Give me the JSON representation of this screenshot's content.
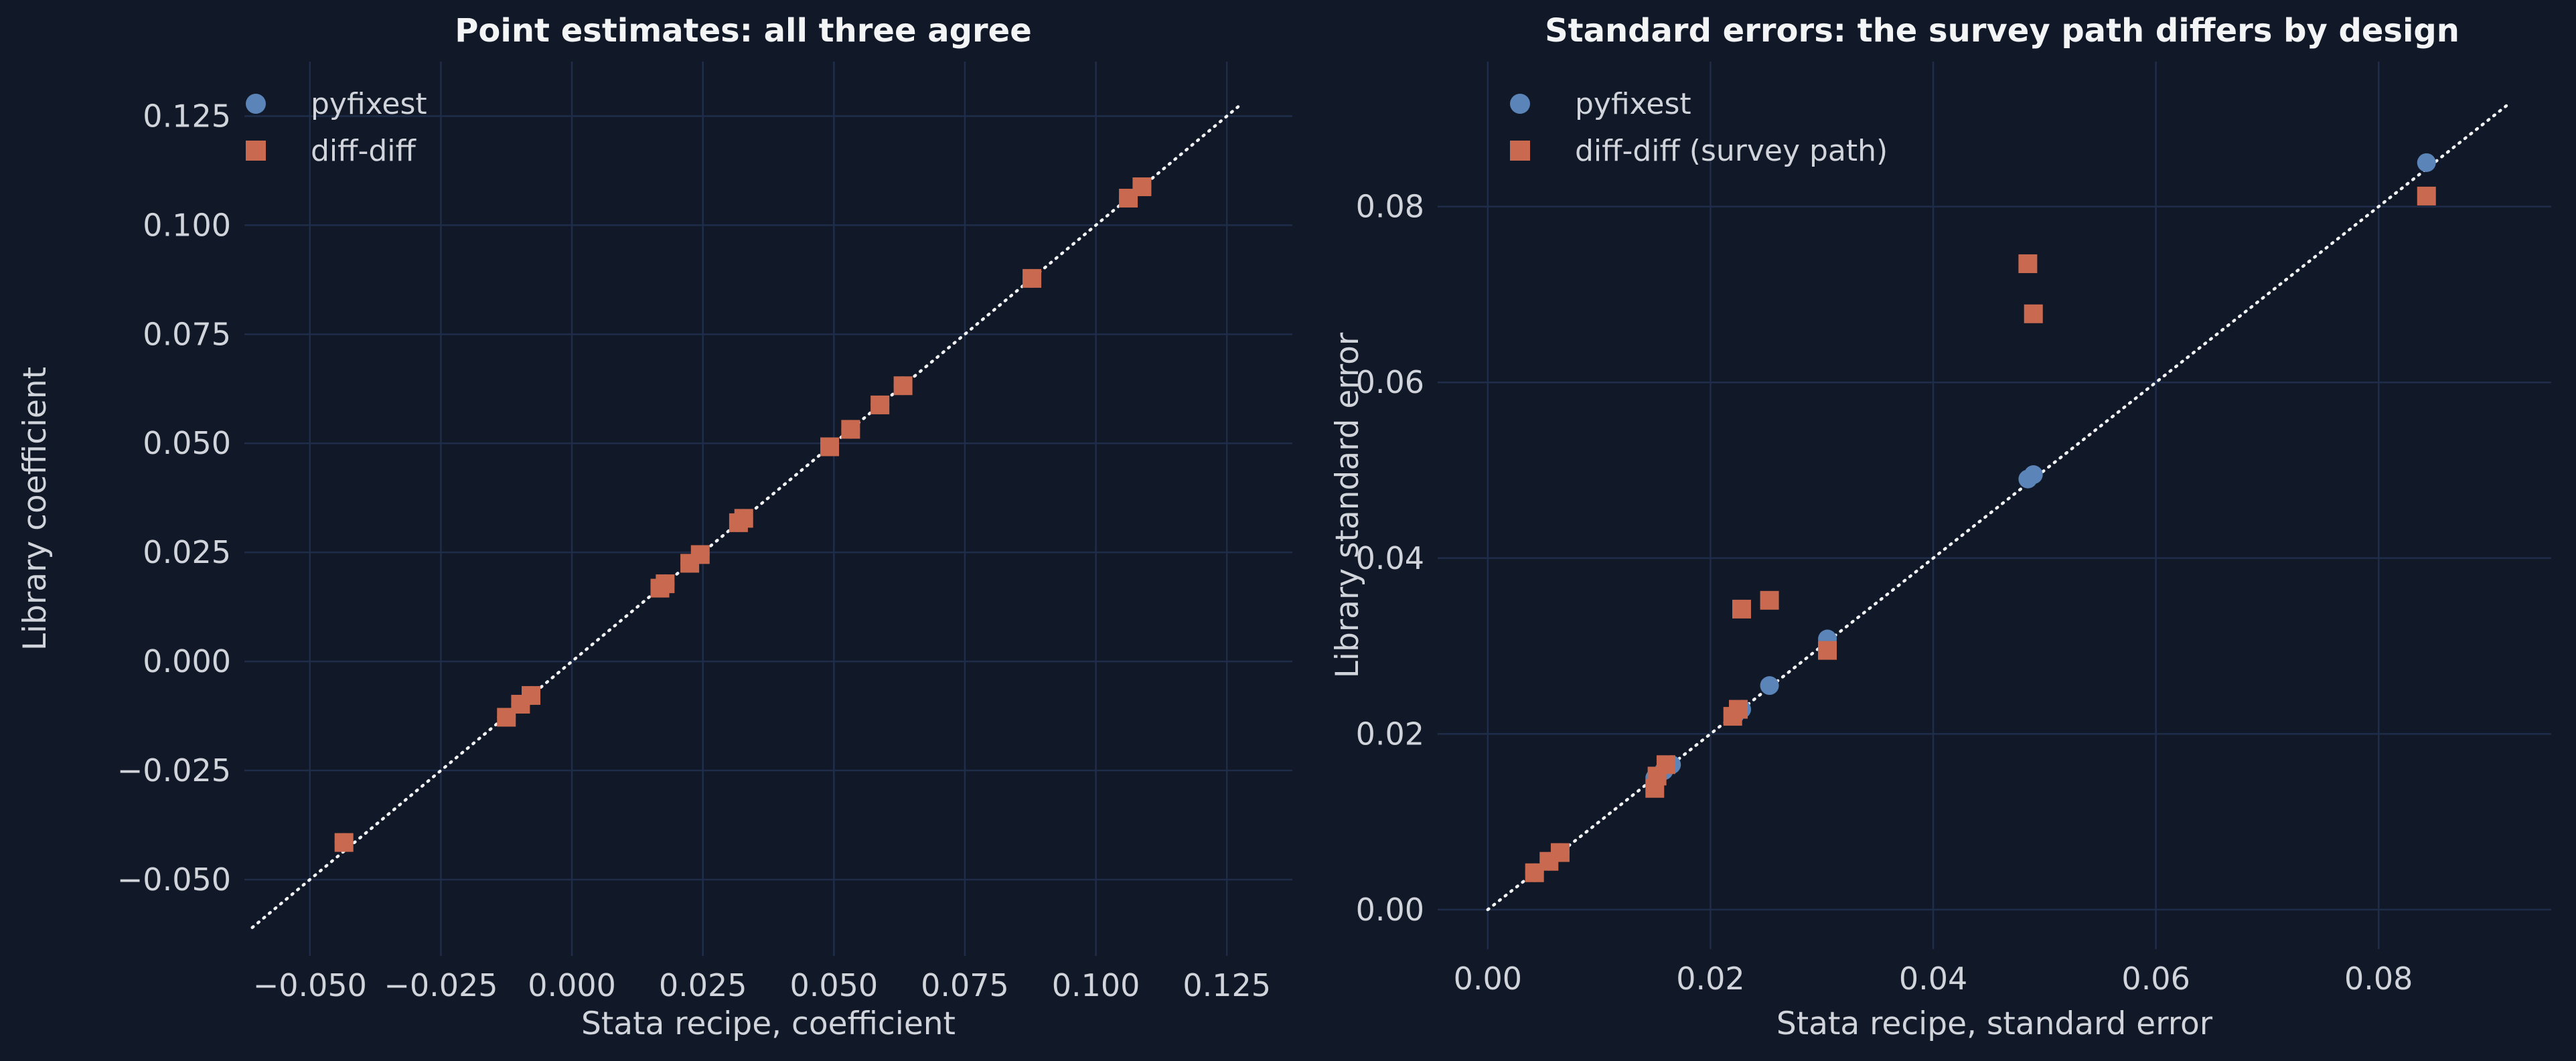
{
  "chart_data": [
    {
      "type": "scatter",
      "title": "Point estimates: all three agree",
      "xlabel": "Stata recipe, coefficient",
      "ylabel": "Library coefficient",
      "xlim": [
        -0.0625,
        0.1375
      ],
      "ylim": [
        -0.0675,
        0.1375
      ],
      "xticks": [
        -0.05,
        -0.025,
        0.0,
        0.025,
        0.05,
        0.075,
        0.1,
        0.125
      ],
      "xtick_labels": [
        "−0.050",
        "−0.025",
        "0.000",
        "0.025",
        "0.050",
        "0.075",
        "0.100",
        "0.125"
      ],
      "yticks": [
        -0.05,
        -0.025,
        0.0,
        0.025,
        0.05,
        0.075,
        0.1,
        0.125
      ],
      "ytick_labels": [
        "−0.050",
        "−0.025",
        "0.000",
        "0.025",
        "0.050",
        "0.075",
        "0.100",
        "0.125"
      ],
      "grid": true,
      "legend": "top-left",
      "reference_line": {
        "from": -0.061,
        "to": 0.128,
        "style": "dotted",
        "color": "#f3f4f6"
      },
      "series": [
        {
          "name": "pyfixest",
          "marker": "circle",
          "color": "#5b84b8",
          "points": [
            [
              -0.0435,
              -0.0415
            ],
            [
              -0.0125,
              -0.0128
            ],
            [
              -0.0098,
              -0.0098
            ],
            [
              -0.0078,
              -0.0078
            ],
            [
              0.0168,
              0.0168
            ],
            [
              0.0178,
              0.0178
            ],
            [
              0.0225,
              0.0225
            ],
            [
              0.0245,
              0.0245
            ],
            [
              0.0318,
              0.0318
            ],
            [
              0.0328,
              0.0328
            ],
            [
              0.0492,
              0.0492
            ],
            [
              0.0532,
              0.0532
            ],
            [
              0.0588,
              0.0588
            ],
            [
              0.0632,
              0.0632
            ],
            [
              0.0878,
              0.0878
            ],
            [
              0.1062,
              0.1062
            ],
            [
              0.1088,
              0.1088
            ]
          ]
        },
        {
          "name": "diff-diff",
          "marker": "square",
          "color": "#c96a50",
          "points": [
            [
              -0.0435,
              -0.0415
            ],
            [
              -0.0125,
              -0.0128
            ],
            [
              -0.0098,
              -0.0098
            ],
            [
              -0.0078,
              -0.0078
            ],
            [
              0.0168,
              0.0168
            ],
            [
              0.0178,
              0.0178
            ],
            [
              0.0225,
              0.0225
            ],
            [
              0.0245,
              0.0245
            ],
            [
              0.0318,
              0.0318
            ],
            [
              0.0328,
              0.0328
            ],
            [
              0.0492,
              0.0492
            ],
            [
              0.0532,
              0.0532
            ],
            [
              0.0588,
              0.0588
            ],
            [
              0.0632,
              0.0632
            ],
            [
              0.0878,
              0.0878
            ],
            [
              0.1062,
              0.1062
            ],
            [
              0.1088,
              0.1088
            ]
          ]
        }
      ]
    },
    {
      "type": "scatter",
      "title": "Standard errors: the survey path differs by design",
      "xlabel": "Stata recipe, standard error",
      "ylabel": "Library standard error",
      "xlim": [
        -0.0045,
        0.0955
      ],
      "ylim": [
        -0.0045,
        0.0965
      ],
      "xticks": [
        0.0,
        0.02,
        0.04,
        0.06,
        0.08
      ],
      "xtick_labels": [
        "0.00",
        "0.02",
        "0.04",
        "0.06",
        "0.08"
      ],
      "yticks": [
        0.0,
        0.02,
        0.04,
        0.06,
        0.08
      ],
      "ytick_labels": [
        "0.00",
        "0.02",
        "0.04",
        "0.06",
        "0.08"
      ],
      "grid": true,
      "legend": "top-left",
      "reference_line": {
        "from": 0.0,
        "to": 0.0915,
        "style": "dotted",
        "color": "#f3f4f6"
      },
      "series": [
        {
          "name": "pyfixest",
          "marker": "circle",
          "color": "#5b84b8",
          "points": [
            [
              0.0042,
              0.0042
            ],
            [
              0.0055,
              0.0055
            ],
            [
              0.0065,
              0.0065
            ],
            [
              0.015,
              0.015
            ],
            [
              0.0158,
              0.0158
            ],
            [
              0.0165,
              0.0165
            ],
            [
              0.0222,
              0.0222
            ],
            [
              0.0228,
              0.0228
            ],
            [
              0.0253,
              0.0255
            ],
            [
              0.0305,
              0.0308
            ],
            [
              0.0485,
              0.049
            ],
            [
              0.049,
              0.0495
            ],
            [
              0.0843,
              0.085
            ]
          ]
        },
        {
          "name": "diff-diff (survey path)",
          "marker": "square",
          "color": "#c96a50",
          "points": [
            [
              0.0042,
              0.0042
            ],
            [
              0.0055,
              0.0055
            ],
            [
              0.0065,
              0.0065
            ],
            [
              0.015,
              0.0138
            ],
            [
              0.0152,
              0.0152
            ],
            [
              0.016,
              0.0165
            ],
            [
              0.022,
              0.022
            ],
            [
              0.0225,
              0.0228
            ],
            [
              0.0228,
              0.0342
            ],
            [
              0.0253,
              0.0352
            ],
            [
              0.0305,
              0.0295
            ],
            [
              0.0485,
              0.0735
            ],
            [
              0.049,
              0.0678
            ],
            [
              0.0843,
              0.0812
            ]
          ]
        }
      ]
    }
  ]
}
